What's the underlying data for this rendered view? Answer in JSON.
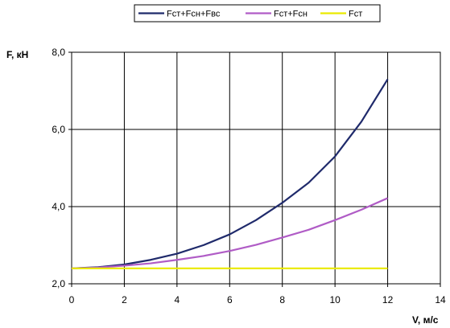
{
  "chart_data": {
    "type": "line",
    "xlabel": "V, м/с",
    "ylabel": "F, кН",
    "xlim": [
      0,
      14
    ],
    "ylim": [
      2.0,
      8.0
    ],
    "x_ticks": [
      0,
      2,
      4,
      6,
      8,
      10,
      12,
      14
    ],
    "x_tick_labels": [
      "0",
      "2",
      "4",
      "6",
      "8",
      "10",
      "12",
      "14"
    ],
    "y_ticks": [
      2,
      4,
      6,
      8
    ],
    "y_tick_labels": [
      "2,0",
      "4,0",
      "6,0",
      "8,0"
    ],
    "grid": true,
    "legend_position": "top",
    "x": [
      0,
      1,
      2,
      3,
      4,
      5,
      6,
      7,
      8,
      9,
      10,
      11,
      12
    ],
    "series": [
      {
        "name": "Fст+Fсн+Fвс",
        "color": "#1f2a6b",
        "values": [
          2.4,
          2.43,
          2.5,
          2.62,
          2.78,
          3.0,
          3.28,
          3.65,
          4.1,
          4.62,
          5.3,
          6.2,
          7.3
        ]
      },
      {
        "name": "Fст+Fсн",
        "color": "#b05cc6",
        "values": [
          2.4,
          2.42,
          2.47,
          2.53,
          2.62,
          2.72,
          2.85,
          3.01,
          3.2,
          3.4,
          3.65,
          3.92,
          4.22
        ]
      },
      {
        "name": "Fст",
        "color": "#eaea00",
        "values": [
          2.4,
          2.4,
          2.4,
          2.4,
          2.4,
          2.4,
          2.4,
          2.4,
          2.4,
          2.4,
          2.4,
          2.4,
          2.4
        ]
      }
    ]
  }
}
